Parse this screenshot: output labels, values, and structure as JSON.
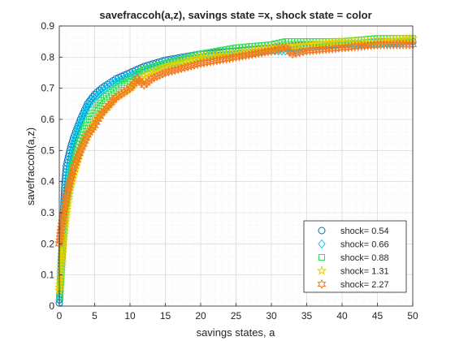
{
  "chart_data": {
    "type": "scatter",
    "title": "savefraccoh(a,z), savings state =x, shock state = color",
    "xlabel": "savings states, a",
    "ylabel": "savefraccoh(a,z)",
    "xlim": [
      0,
      50
    ],
    "ylim": [
      0,
      0.9
    ],
    "xticks": [
      0,
      5,
      10,
      15,
      20,
      25,
      30,
      35,
      40,
      45,
      50
    ],
    "yticks": [
      0,
      0.1,
      0.2,
      0.3,
      0.4,
      0.5,
      0.6,
      0.7,
      0.8,
      0.9
    ],
    "grid": "major and minor, dotted",
    "legend_position": "bottom-right",
    "series": [
      {
        "name": "shock=  0.54",
        "marker": "circle",
        "color": "#0072BD",
        "points": [
          [
            0,
            0.01
          ],
          [
            0.1,
            0.05
          ],
          [
            0.2,
            0.1
          ],
          [
            0.4,
            0.2
          ],
          [
            0.6,
            0.3
          ],
          [
            0.8,
            0.4
          ],
          [
            1,
            0.45
          ],
          [
            1.5,
            0.5
          ],
          [
            2,
            0.54
          ],
          [
            3,
            0.6
          ],
          [
            4,
            0.65
          ],
          [
            5,
            0.68
          ],
          [
            6,
            0.7
          ],
          [
            8,
            0.73
          ],
          [
            10,
            0.75
          ],
          [
            12,
            0.77
          ],
          [
            15,
            0.79
          ],
          [
            20,
            0.81
          ],
          [
            25,
            0.82
          ],
          [
            30,
            0.83
          ],
          [
            35,
            0.84
          ],
          [
            40,
            0.84
          ],
          [
            45,
            0.85
          ],
          [
            50,
            0.85
          ]
        ]
      },
      {
        "name": "shock=  0.66",
        "marker": "diamond",
        "color": "#00C8E6",
        "points": [
          [
            0,
            0.02
          ],
          [
            0.1,
            0.04
          ],
          [
            0.3,
            0.12
          ],
          [
            0.5,
            0.2
          ],
          [
            0.8,
            0.32
          ],
          [
            1,
            0.38
          ],
          [
            1.5,
            0.47
          ],
          [
            2,
            0.52
          ],
          [
            3,
            0.59
          ],
          [
            4,
            0.64
          ],
          [
            5,
            0.67
          ],
          [
            6,
            0.69
          ],
          [
            8,
            0.72
          ],
          [
            10,
            0.74
          ],
          [
            12,
            0.76
          ],
          [
            15,
            0.78
          ],
          [
            20,
            0.8
          ],
          [
            25,
            0.81
          ],
          [
            30,
            0.82
          ],
          [
            32,
            0.82
          ],
          [
            33,
            0.82
          ],
          [
            35,
            0.83
          ],
          [
            40,
            0.84
          ],
          [
            45,
            0.84
          ],
          [
            50,
            0.85
          ]
        ]
      },
      {
        "name": "shock=  0.88",
        "marker": "square",
        "color": "#33DD55",
        "points": [
          [
            0,
            0.03
          ],
          [
            0.2,
            0.08
          ],
          [
            0.4,
            0.15
          ],
          [
            0.7,
            0.25
          ],
          [
            1,
            0.32
          ],
          [
            1.5,
            0.4
          ],
          [
            2,
            0.46
          ],
          [
            3,
            0.54
          ],
          [
            4,
            0.59
          ],
          [
            5,
            0.63
          ],
          [
            6,
            0.66
          ],
          [
            8,
            0.7
          ],
          [
            10,
            0.73
          ],
          [
            12,
            0.76
          ],
          [
            15,
            0.78
          ],
          [
            20,
            0.81
          ],
          [
            25,
            0.83
          ],
          [
            30,
            0.84
          ],
          [
            32,
            0.85
          ],
          [
            35,
            0.85
          ],
          [
            40,
            0.85
          ],
          [
            45,
            0.86
          ],
          [
            50,
            0.86
          ]
        ]
      },
      {
        "name": "shock=  1.31",
        "marker": "pentagram",
        "color": "#E6D000",
        "points": [
          [
            0,
            0.05
          ],
          [
            0.2,
            0.1
          ],
          [
            0.4,
            0.16
          ],
          [
            0.7,
            0.24
          ],
          [
            1,
            0.3
          ],
          [
            1.5,
            0.37
          ],
          [
            2,
            0.42
          ],
          [
            3,
            0.5
          ],
          [
            4,
            0.55
          ],
          [
            5,
            0.59
          ],
          [
            6,
            0.62
          ],
          [
            8,
            0.67
          ],
          [
            10,
            0.7
          ],
          [
            12,
            0.74
          ],
          [
            15,
            0.77
          ],
          [
            20,
            0.8
          ],
          [
            25,
            0.81
          ],
          [
            30,
            0.83
          ],
          [
            35,
            0.84
          ],
          [
            40,
            0.85
          ],
          [
            45,
            0.85
          ],
          [
            50,
            0.86
          ]
        ]
      },
      {
        "name": "shock=  2.27",
        "marker": "hexagram",
        "color": "#F07820",
        "points": [
          [
            0,
            0.2
          ],
          [
            0.1,
            0.22
          ],
          [
            0.2,
            0.24
          ],
          [
            0.4,
            0.27
          ],
          [
            0.7,
            0.31
          ],
          [
            1,
            0.35
          ],
          [
            1.5,
            0.4
          ],
          [
            2,
            0.44
          ],
          [
            3,
            0.5
          ],
          [
            4,
            0.55
          ],
          [
            5,
            0.58
          ],
          [
            6,
            0.62
          ],
          [
            8,
            0.67
          ],
          [
            10,
            0.7
          ],
          [
            11,
            0.73
          ],
          [
            12,
            0.71
          ],
          [
            13,
            0.73
          ],
          [
            15,
            0.75
          ],
          [
            20,
            0.78
          ],
          [
            25,
            0.8
          ],
          [
            30,
            0.82
          ],
          [
            32,
            0.83
          ],
          [
            33,
            0.81
          ],
          [
            35,
            0.82
          ],
          [
            40,
            0.83
          ],
          [
            45,
            0.84
          ],
          [
            50,
            0.84
          ]
        ]
      }
    ]
  }
}
